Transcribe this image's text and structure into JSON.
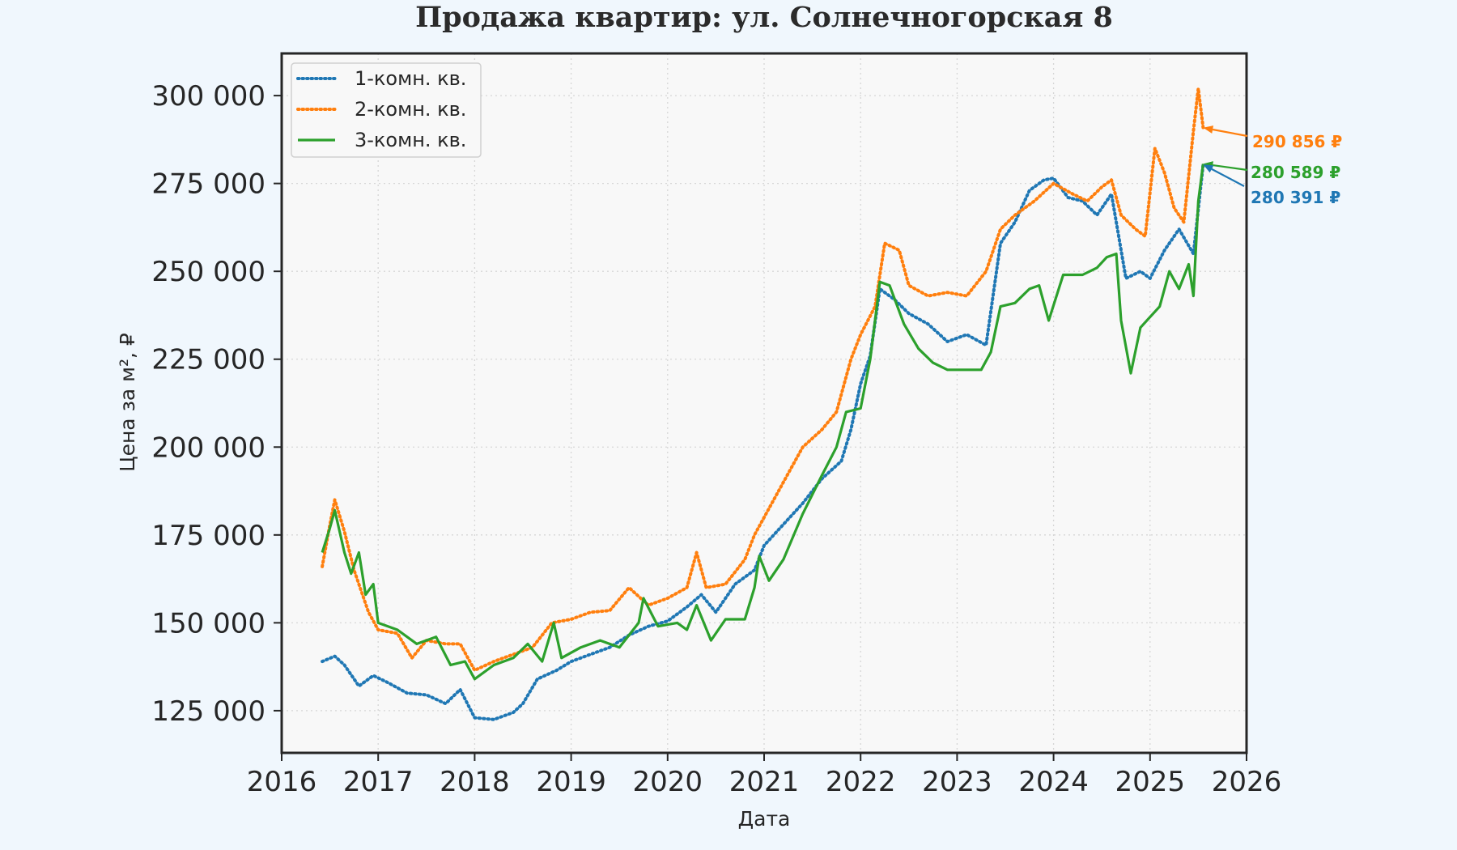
{
  "colors": {
    "background": "#f0f7fd",
    "plot_area": "#f8f8f8",
    "series_1": "#1f77b4",
    "series_2": "#ff7f0e",
    "series_3": "#2ca02c"
  },
  "chart_data": {
    "type": "line",
    "title": "Продажа квартир: ул. Солнечногорская 8",
    "xlabel": "Дата",
    "ylabel": "Цена за м², ₽",
    "xlim": [
      2016,
      2026
    ],
    "ylim": [
      113000,
      312000
    ],
    "xticks": [
      "2016",
      "2017",
      "2018",
      "2019",
      "2020",
      "2021",
      "2022",
      "2023",
      "2024",
      "2025",
      "2026"
    ],
    "yticks": [
      "125 000",
      "150 000",
      "175 000",
      "200 000",
      "225 000",
      "250 000",
      "275 000",
      "300 000"
    ],
    "grid": true,
    "legend_position": "top-left",
    "series": [
      {
        "name": "1-комн. кв.",
        "style": "dotted",
        "color": "#1f77b4",
        "points": [
          [
            2016.42,
            139000
          ],
          [
            2016.55,
            140500
          ],
          [
            2016.65,
            138000
          ],
          [
            2016.8,
            132000
          ],
          [
            2016.95,
            135000
          ],
          [
            2017.1,
            133000
          ],
          [
            2017.3,
            130000
          ],
          [
            2017.5,
            129500
          ],
          [
            2017.7,
            127000
          ],
          [
            2017.85,
            131000
          ],
          [
            2018.0,
            123000
          ],
          [
            2018.2,
            122500
          ],
          [
            2018.4,
            124500
          ],
          [
            2018.5,
            127000
          ],
          [
            2018.65,
            134000
          ],
          [
            2018.85,
            136500
          ],
          [
            2019.0,
            139000
          ],
          [
            2019.2,
            141000
          ],
          [
            2019.4,
            143000
          ],
          [
            2019.6,
            146500
          ],
          [
            2019.8,
            149000
          ],
          [
            2020.0,
            150500
          ],
          [
            2020.2,
            154500
          ],
          [
            2020.35,
            158000
          ],
          [
            2020.5,
            153000
          ],
          [
            2020.7,
            161000
          ],
          [
            2020.9,
            165000
          ],
          [
            2021.0,
            172000
          ],
          [
            2021.2,
            178000
          ],
          [
            2021.4,
            184000
          ],
          [
            2021.6,
            191000
          ],
          [
            2021.8,
            196000
          ],
          [
            2021.9,
            205000
          ],
          [
            2022.0,
            218000
          ],
          [
            2022.1,
            226000
          ],
          [
            2022.2,
            245000
          ],
          [
            2022.35,
            242000
          ],
          [
            2022.5,
            238000
          ],
          [
            2022.7,
            235000
          ],
          [
            2022.9,
            230000
          ],
          [
            2023.1,
            232000
          ],
          [
            2023.3,
            229000
          ],
          [
            2023.45,
            258000
          ],
          [
            2023.6,
            264000
          ],
          [
            2023.75,
            273000
          ],
          [
            2023.9,
            276000
          ],
          [
            2024.0,
            276500
          ],
          [
            2024.15,
            271000
          ],
          [
            2024.3,
            270000
          ],
          [
            2024.45,
            266000
          ],
          [
            2024.6,
            272000
          ],
          [
            2024.75,
            248000
          ],
          [
            2024.9,
            250000
          ],
          [
            2025.0,
            248000
          ],
          [
            2025.15,
            256000
          ],
          [
            2025.3,
            262000
          ],
          [
            2025.45,
            255000
          ],
          [
            2025.55,
            280391
          ]
        ]
      },
      {
        "name": "2-комн. кв.",
        "style": "dotted",
        "color": "#ff7f0e",
        "points": [
          [
            2016.42,
            166000
          ],
          [
            2016.5,
            178000
          ],
          [
            2016.55,
            185000
          ],
          [
            2016.65,
            176000
          ],
          [
            2016.75,
            165000
          ],
          [
            2016.9,
            153000
          ],
          [
            2017.0,
            148000
          ],
          [
            2017.2,
            147000
          ],
          [
            2017.35,
            140000
          ],
          [
            2017.5,
            145000
          ],
          [
            2017.7,
            144000
          ],
          [
            2017.85,
            144000
          ],
          [
            2018.0,
            136500
          ],
          [
            2018.2,
            139000
          ],
          [
            2018.4,
            141000
          ],
          [
            2018.6,
            143000
          ],
          [
            2018.8,
            150000
          ],
          [
            2019.0,
            151000
          ],
          [
            2019.2,
            153000
          ],
          [
            2019.4,
            153500
          ],
          [
            2019.6,
            160000
          ],
          [
            2019.8,
            155000
          ],
          [
            2020.0,
            157000
          ],
          [
            2020.2,
            160000
          ],
          [
            2020.3,
            170000
          ],
          [
            2020.4,
            160000
          ],
          [
            2020.6,
            161000
          ],
          [
            2020.8,
            168000
          ],
          [
            2020.9,
            175000
          ],
          [
            2021.0,
            180000
          ],
          [
            2021.2,
            190000
          ],
          [
            2021.4,
            200000
          ],
          [
            2021.6,
            205000
          ],
          [
            2021.75,
            210000
          ],
          [
            2021.9,
            225000
          ],
          [
            2022.0,
            232000
          ],
          [
            2022.15,
            240000
          ],
          [
            2022.25,
            258000
          ],
          [
            2022.4,
            256000
          ],
          [
            2022.5,
            246000
          ],
          [
            2022.7,
            243000
          ],
          [
            2022.9,
            244000
          ],
          [
            2023.1,
            243000
          ],
          [
            2023.3,
            250000
          ],
          [
            2023.45,
            262000
          ],
          [
            2023.6,
            266000
          ],
          [
            2023.8,
            270000
          ],
          [
            2024.0,
            275000
          ],
          [
            2024.2,
            272000
          ],
          [
            2024.35,
            270000
          ],
          [
            2024.5,
            274000
          ],
          [
            2024.6,
            276000
          ],
          [
            2024.7,
            266000
          ],
          [
            2024.85,
            262000
          ],
          [
            2024.95,
            260000
          ],
          [
            2025.05,
            285000
          ],
          [
            2025.15,
            278000
          ],
          [
            2025.25,
            268000
          ],
          [
            2025.35,
            264000
          ],
          [
            2025.45,
            290000
          ],
          [
            2025.5,
            302000
          ],
          [
            2025.55,
            290856
          ]
        ]
      },
      {
        "name": "3-комн. кв.",
        "style": "solid",
        "color": "#2ca02c",
        "points": [
          [
            2016.42,
            170000
          ],
          [
            2016.5,
            177000
          ],
          [
            2016.55,
            182000
          ],
          [
            2016.65,
            170000
          ],
          [
            2016.72,
            164000
          ],
          [
            2016.8,
            170000
          ],
          [
            2016.87,
            158000
          ],
          [
            2016.95,
            161000
          ],
          [
            2017.0,
            150000
          ],
          [
            2017.2,
            148000
          ],
          [
            2017.4,
            144000
          ],
          [
            2017.6,
            146000
          ],
          [
            2017.75,
            138000
          ],
          [
            2017.9,
            139000
          ],
          [
            2018.0,
            134000
          ],
          [
            2018.2,
            138000
          ],
          [
            2018.4,
            140000
          ],
          [
            2018.55,
            144000
          ],
          [
            2018.7,
            139000
          ],
          [
            2018.82,
            150000
          ],
          [
            2018.9,
            140000
          ],
          [
            2019.1,
            143000
          ],
          [
            2019.3,
            145000
          ],
          [
            2019.5,
            143000
          ],
          [
            2019.7,
            150000
          ],
          [
            2019.75,
            157000
          ],
          [
            2019.9,
            149000
          ],
          [
            2020.1,
            150000
          ],
          [
            2020.2,
            148000
          ],
          [
            2020.3,
            155000
          ],
          [
            2020.45,
            145000
          ],
          [
            2020.6,
            151000
          ],
          [
            2020.8,
            151000
          ],
          [
            2020.9,
            160000
          ],
          [
            2020.95,
            169000
          ],
          [
            2021.05,
            162000
          ],
          [
            2021.2,
            168000
          ],
          [
            2021.4,
            181000
          ],
          [
            2021.6,
            192000
          ],
          [
            2021.75,
            200000
          ],
          [
            2021.85,
            210000
          ],
          [
            2022.0,
            211000
          ],
          [
            2022.1,
            225000
          ],
          [
            2022.2,
            247000
          ],
          [
            2022.3,
            246000
          ],
          [
            2022.45,
            235000
          ],
          [
            2022.6,
            228000
          ],
          [
            2022.75,
            224000
          ],
          [
            2022.9,
            222000
          ],
          [
            2023.1,
            222000
          ],
          [
            2023.25,
            222000
          ],
          [
            2023.35,
            227000
          ],
          [
            2023.45,
            240000
          ],
          [
            2023.6,
            241000
          ],
          [
            2023.75,
            245000
          ],
          [
            2023.85,
            246000
          ],
          [
            2023.95,
            236000
          ],
          [
            2024.1,
            249000
          ],
          [
            2024.3,
            249000
          ],
          [
            2024.45,
            251000
          ],
          [
            2024.55,
            254000
          ],
          [
            2024.65,
            255000
          ],
          [
            2024.7,
            236000
          ],
          [
            2024.8,
            221000
          ],
          [
            2024.9,
            234000
          ],
          [
            2025.0,
            237000
          ],
          [
            2025.1,
            240000
          ],
          [
            2025.2,
            250000
          ],
          [
            2025.3,
            245000
          ],
          [
            2025.4,
            252000
          ],
          [
            2025.45,
            243000
          ],
          [
            2025.5,
            270000
          ],
          [
            2025.55,
            280589
          ]
        ]
      }
    ],
    "annotations": [
      {
        "text": "290 856 ₽",
        "x": 2025.55,
        "y": 290856,
        "color": "#ff7f0e"
      },
      {
        "text": "280 589 ₽",
        "x": 2025.55,
        "y": 280589,
        "color": "#2ca02c"
      },
      {
        "text": "280 391 ₽",
        "x": 2025.55,
        "y": 280391,
        "color": "#1f77b4"
      }
    ]
  }
}
